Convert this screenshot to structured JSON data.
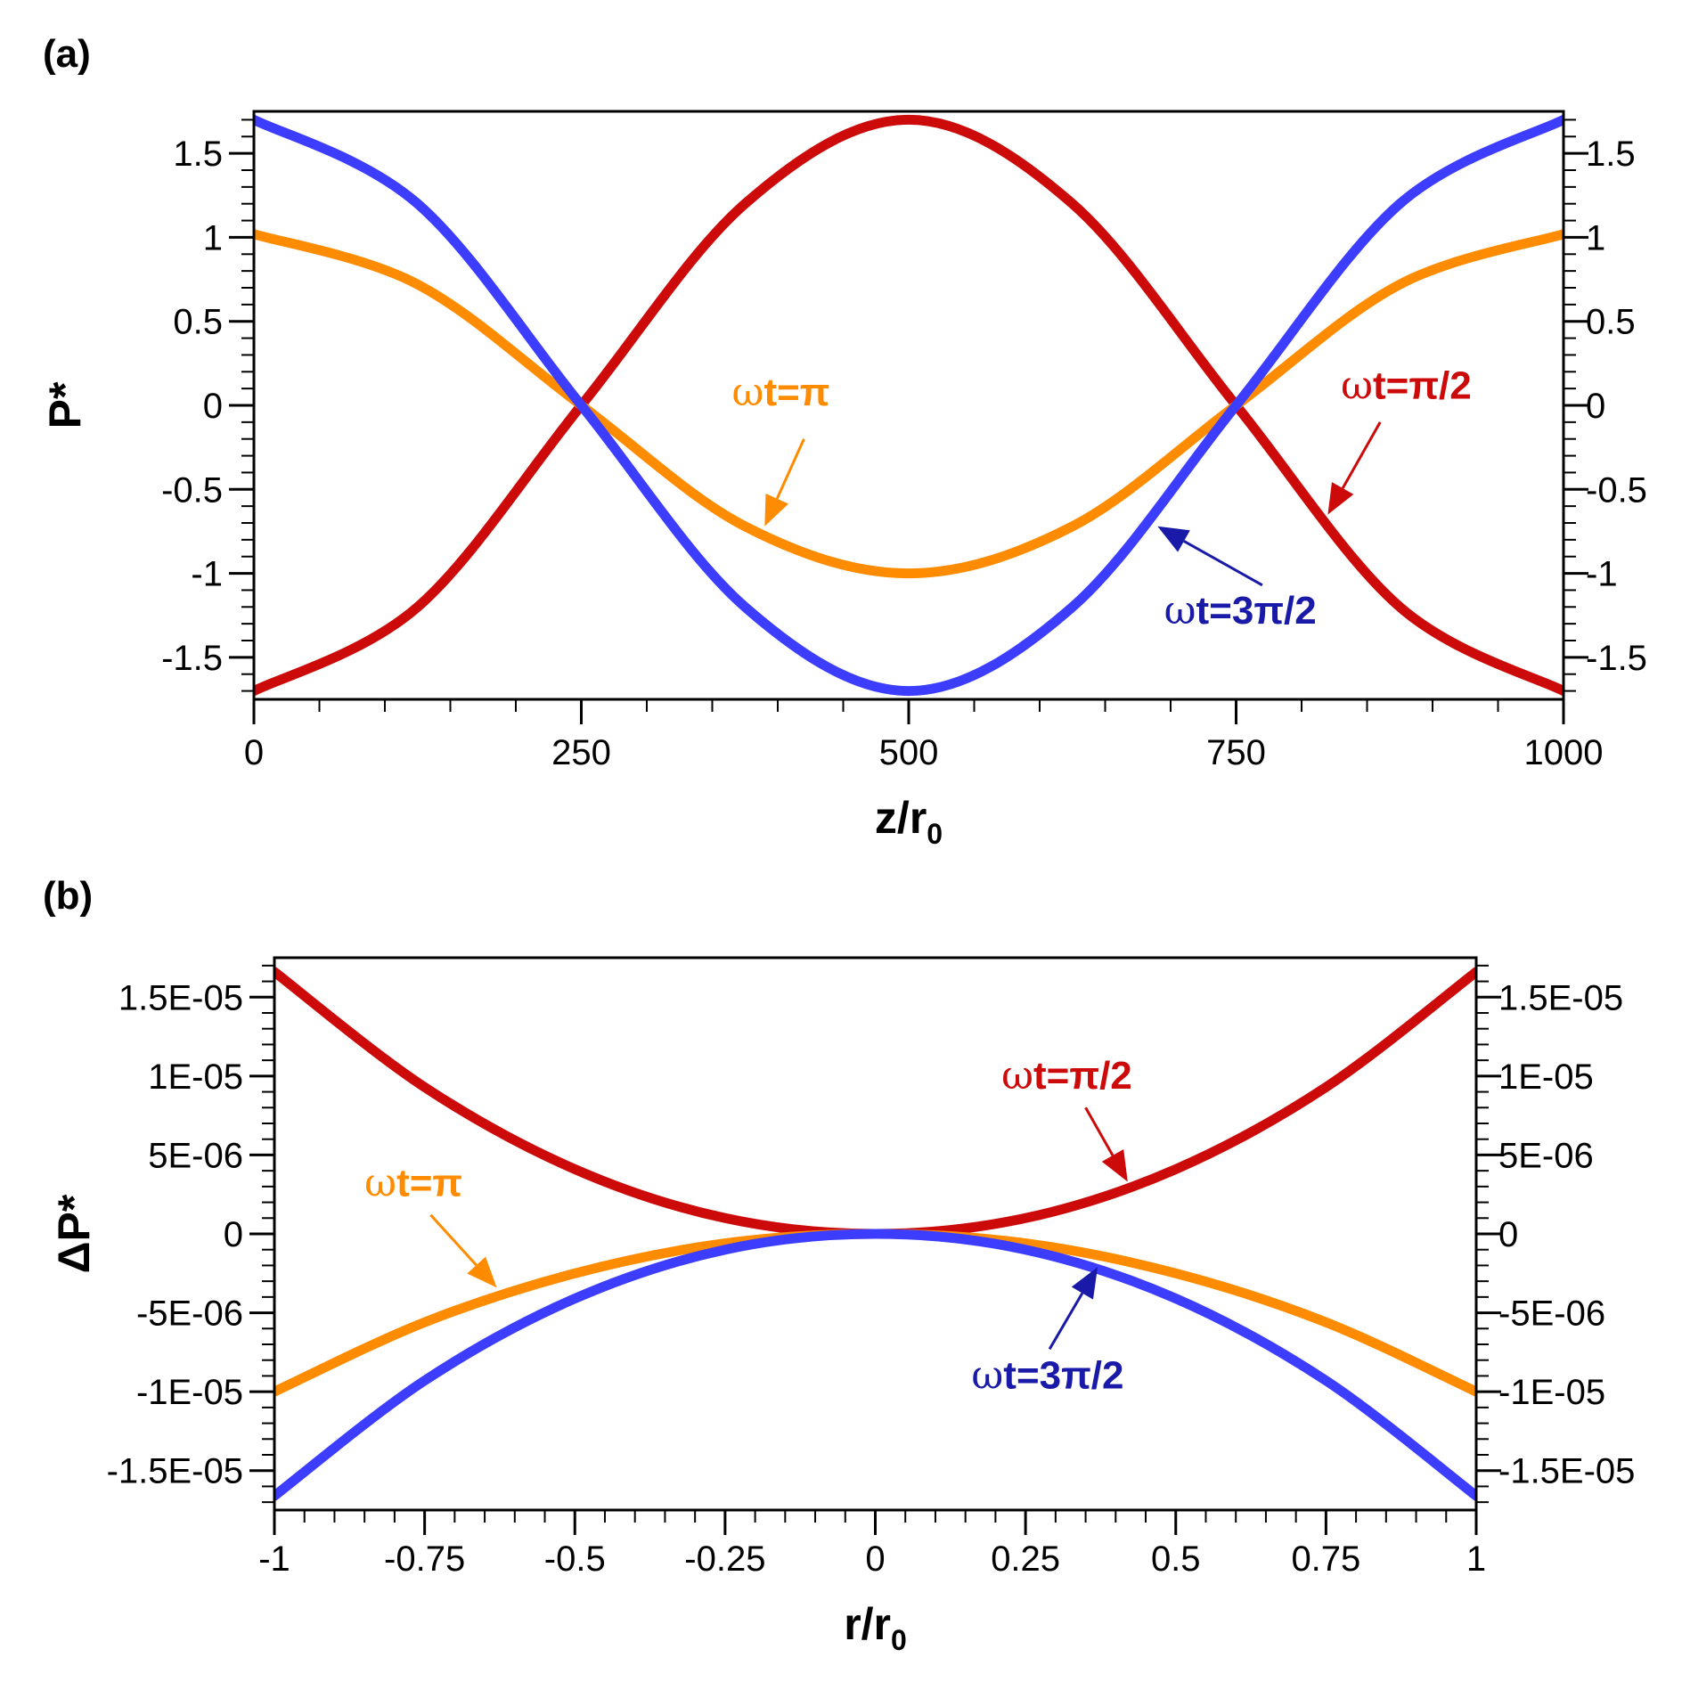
{
  "chart_data": [
    {
      "panel": "(a)",
      "type": "line",
      "xlabel": "z/r",
      "xlabel_sub": "0",
      "ylabel": "P*",
      "xlim": [
        0,
        1000
      ],
      "ylim": [
        -1.75,
        1.75
      ],
      "xticks": [
        0,
        250,
        500,
        750,
        1000
      ],
      "xtick_labels": [
        "0",
        "250",
        "500",
        "750",
        "1000"
      ],
      "yticks": [
        1.5,
        1,
        0.5,
        0,
        -0.5,
        -1,
        -1.5
      ],
      "ytick_labels": [
        "1.5",
        "1",
        "0.5",
        "0",
        "-0.5",
        "-1",
        "-1.5"
      ],
      "x": [
        0,
        125,
        250,
        375,
        500,
        625,
        750,
        875,
        1000
      ],
      "series": [
        {
          "name": "ωt=π/2",
          "color": "#cc0a0a",
          "values": [
            -1.7,
            -1.2,
            0,
            1.2,
            1.7,
            1.2,
            0,
            -1.2,
            -1.7
          ]
        },
        {
          "name": "ωt=π",
          "color": "#ff8c00",
          "values": [
            1.02,
            0.72,
            0,
            -0.72,
            -1.0,
            -0.72,
            0,
            0.72,
            1.02
          ]
        },
        {
          "name": "ωt=3π/2",
          "color": "#3d3dff",
          "values": [
            1.7,
            1.2,
            0,
            -1.2,
            -1.7,
            -1.2,
            0,
            1.2,
            1.7
          ]
        }
      ],
      "annotations": [
        {
          "sym": "ω",
          "text": "t=π",
          "color": "#ff8c00",
          "tip": [
            390,
            -0.72
          ],
          "tail": [
            420,
            -0.2
          ],
          "text_at": [
            365,
            0.0
          ]
        },
        {
          "sym": "ω",
          "text": "t=3π/2",
          "color": "#1a1aa8",
          "tip": [
            690,
            -0.72
          ],
          "tail": [
            770,
            -1.07
          ],
          "text_at": [
            695,
            -1.3
          ]
        },
        {
          "sym": "ω",
          "text": "t=π/2",
          "color": "#cc0a0a",
          "tip": [
            820,
            -0.65
          ],
          "tail": [
            860,
            -0.1
          ],
          "text_at": [
            830,
            0.04
          ]
        }
      ]
    },
    {
      "panel": "(b)",
      "type": "line",
      "xlabel": "r/r",
      "xlabel_sub": "0",
      "ylabel": "ΔP*",
      "xlim": [
        -1,
        1
      ],
      "ylim": [
        -1.75e-05,
        1.75e-05
      ],
      "xticks": [
        -1,
        -0.75,
        -0.5,
        -0.25,
        0,
        0.25,
        0.5,
        0.75,
        1
      ],
      "xtick_labels": [
        "-1",
        "-0.75",
        "-0.5",
        "-0.25",
        "0",
        "0.25",
        "0.5",
        "0.75",
        "1"
      ],
      "yticks": [
        1.5e-05,
        1e-05,
        5e-06,
        0,
        -5e-06,
        -1e-05,
        -1.5e-05
      ],
      "ytick_labels": [
        "1.5E-05",
        "1E-05",
        "5E-06",
        "0",
        "-5E-06",
        "-1E-05",
        "-1.5E-05"
      ],
      "x": [
        -1,
        -0.75,
        -0.5,
        -0.25,
        0,
        0.25,
        0.5,
        0.75,
        1
      ],
      "series": [
        {
          "name": "ωt=π/2",
          "color": "#cc0a0a",
          "values": [
            1.66e-05,
            9.3e-06,
            4.1e-06,
            1e-06,
            0,
            1e-06,
            4.1e-06,
            9.3e-06,
            1.66e-05
          ]
        },
        {
          "name": "ωt=π",
          "color": "#ff8c00",
          "values": [
            -1e-05,
            -5.6e-06,
            -2.5e-06,
            -6e-07,
            0,
            -6e-07,
            -2.5e-06,
            -5.6e-06,
            -1e-05
          ]
        },
        {
          "name": "ωt=3π/2",
          "color": "#3d3dff",
          "values": [
            -1.66e-05,
            -9.3e-06,
            -4.1e-06,
            -1e-06,
            0,
            -1e-06,
            -4.1e-06,
            -9.3e-06,
            -1.66e-05
          ]
        }
      ],
      "annotations": [
        {
          "sym": "ω",
          "text": "t=π",
          "color": "#ff8c00",
          "tip": [
            -0.63,
            -3.4e-06
          ],
          "tail": [
            -0.74,
            1.2e-06
          ],
          "text_at": [
            -0.85,
            2.4e-06
          ]
        },
        {
          "sym": "ω",
          "text": "t=3π/2",
          "color": "#1a1aa8",
          "tip": [
            0.37,
            -2.1e-06
          ],
          "tail": [
            0.29,
            -7.3e-06
          ],
          "text_at": [
            0.16,
            -9.8e-06
          ]
        },
        {
          "sym": "ω",
          "text": "t=π/2",
          "color": "#cc0a0a",
          "tip": [
            0.42,
            3.3e-06
          ],
          "tail": [
            0.35,
            8e-06
          ],
          "text_at": [
            0.21,
            9.2e-06
          ]
        }
      ]
    }
  ]
}
